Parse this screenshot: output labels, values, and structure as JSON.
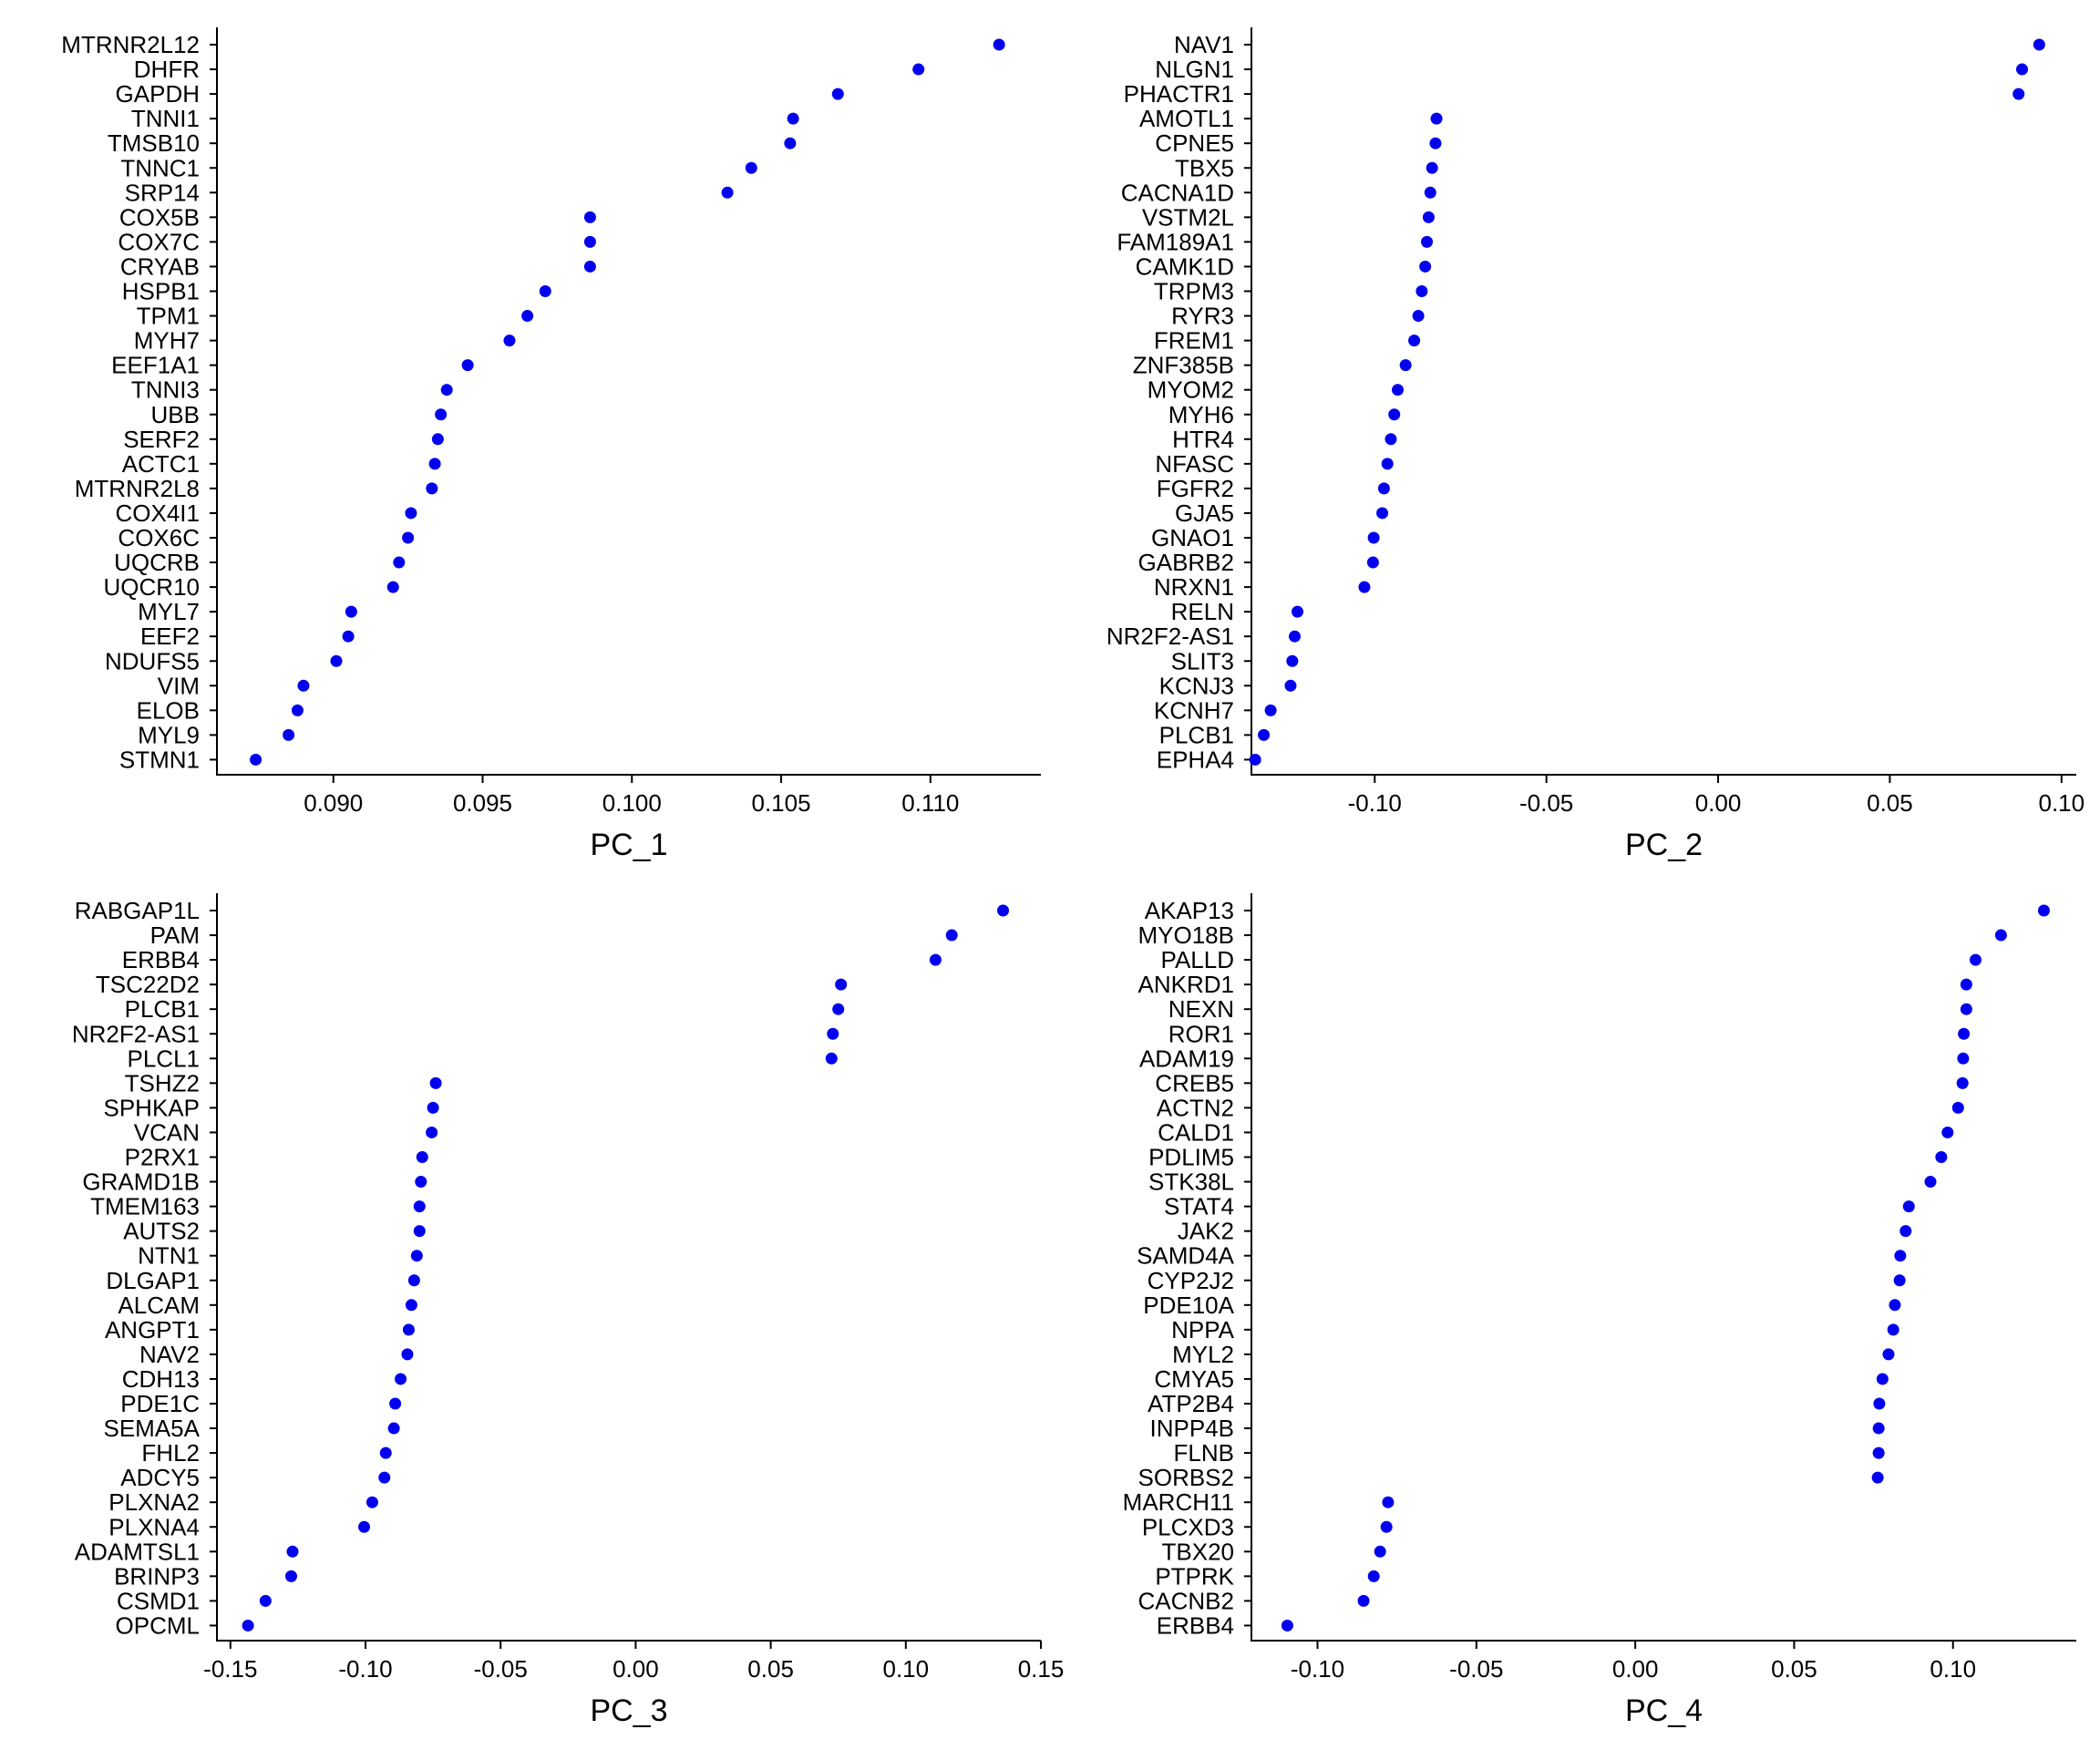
{
  "colors": {
    "point": "#0000ee",
    "axis": "#000000",
    "background": "#ffffff"
  },
  "chart_data": [
    {
      "type": "scatter",
      "xlabel": "PC_1",
      "xlim": [
        0.0861,
        0.1137
      ],
      "xticks": [
        0.09,
        0.095,
        0.1,
        0.105,
        0.11
      ],
      "xtick_labels": [
        "0.090",
        "0.095",
        "0.100",
        "0.105",
        "0.110"
      ],
      "genes": [
        "MTRNR2L12",
        "DHFR",
        "GAPDH",
        "TNNI1",
        "TMSB10",
        "TNNC1",
        "SRP14",
        "COX5B",
        "COX7C",
        "CRYAB",
        "HSPB1",
        "TPM1",
        "MYH7",
        "EEF1A1",
        "TNNI3",
        "UBB",
        "SERF2",
        "ACTC1",
        "MTRNR2L8",
        "COX4I1",
        "COX6C",
        "UQCRB",
        "UQCR10",
        "MYL7",
        "EEF2",
        "NDUFS5",
        "VIM",
        "ELOB",
        "MYL9",
        "STMN1"
      ],
      "values": [
        0.1123,
        0.1096,
        0.1069,
        0.1054,
        0.1053,
        0.104,
        0.1032,
        0.0986,
        0.0986,
        0.0986,
        0.0971,
        0.0965,
        0.0959,
        0.0945,
        0.0938,
        0.0936,
        0.0935,
        0.0934,
        0.0933,
        0.0926,
        0.0925,
        0.0922,
        0.092,
        0.0906,
        0.0905,
        0.0901,
        0.089,
        0.0888,
        0.0885,
        0.0874
      ]
    },
    {
      "type": "scatter",
      "xlabel": "PC_2",
      "xlim": [
        -0.1359,
        0.1043
      ],
      "xticks": [
        -0.1,
        -0.05,
        0.0,
        0.05,
        0.1
      ],
      "xtick_labels": [
        "-0.10",
        "-0.05",
        "0.00",
        "0.05",
        "0.10"
      ],
      "genes": [
        "NAV1",
        "NLGN1",
        "PHACTR1",
        "AMOTL1",
        "CPNE5",
        "TBX5",
        "CACNA1D",
        "VSTM2L",
        "FAM189A1",
        "CAMK1D",
        "TRPM3",
        "RYR3",
        "FREM1",
        "ZNF385B",
        "MYOM2",
        "MYH6",
        "HTR4",
        "NFASC",
        "FGFR2",
        "GJA5",
        "GNAO1",
        "GABRB2",
        "NRXN1",
        "RELN",
        "NR2F2-AS1",
        "SLIT3",
        "KCNJ3",
        "KCNH7",
        "PLCB1",
        "EPHA4"
      ],
      "values": [
        0.0935,
        0.0885,
        0.0875,
        -0.082,
        -0.0823,
        -0.0833,
        -0.0838,
        -0.0843,
        -0.0848,
        -0.0853,
        -0.0863,
        -0.0873,
        -0.0885,
        -0.091,
        -0.0933,
        -0.0943,
        -0.0953,
        -0.0963,
        -0.0973,
        -0.0978,
        -0.1003,
        -0.1005,
        -0.103,
        -0.1225,
        -0.1233,
        -0.124,
        -0.1245,
        -0.1303,
        -0.1323,
        -0.1348
      ]
    },
    {
      "type": "scatter",
      "xlabel": "PC_3",
      "xlim": [
        -0.155,
        0.15
      ],
      "xticks": [
        -0.15,
        -0.1,
        -0.05,
        0.0,
        0.05,
        0.1,
        0.15
      ],
      "xtick_labels": [
        "-0.15",
        "-0.10",
        "-0.05",
        "0.00",
        "0.05",
        "0.10",
        "0.15"
      ],
      "genes": [
        "RABGAP1L",
        "PAM",
        "ERBB4",
        "TSC22D2",
        "PLCB1",
        "NR2F2-AS1",
        "PLCL1",
        "TSHZ2",
        "SPHKAP",
        "VCAN",
        "P2RX1",
        "GRAMD1B",
        "TMEM163",
        "AUTS2",
        "NTN1",
        "DLGAP1",
        "ALCAM",
        "ANGPT1",
        "NAV2",
        "CDH13",
        "PDE1C",
        "SEMA5A",
        "FHL2",
        "ADCY5",
        "PLXNA2",
        "PLXNA4",
        "ADAMTSL1",
        "BRINP3",
        "CSMD1",
        "OPCML"
      ],
      "values": [
        0.136,
        0.117,
        0.111,
        0.076,
        0.075,
        0.073,
        0.0725,
        -0.074,
        -0.075,
        -0.0755,
        -0.079,
        -0.0795,
        -0.08,
        -0.08,
        -0.081,
        -0.082,
        -0.083,
        -0.084,
        -0.0845,
        -0.087,
        -0.089,
        -0.0895,
        -0.0925,
        -0.093,
        -0.0975,
        -0.1005,
        -0.127,
        -0.1275,
        -0.137,
        -0.1435
      ]
    },
    {
      "type": "scatter",
      "xlabel": "PC_4",
      "xlim": [
        -0.1208,
        0.1388
      ],
      "xticks": [
        -0.1,
        -0.05,
        0.0,
        0.05,
        0.1
      ],
      "xtick_labels": [
        "-0.10",
        "-0.05",
        "0.00",
        "0.05",
        "0.10"
      ],
      "genes": [
        "AKAP13",
        "MYO18B",
        "PALLD",
        "ANKRD1",
        "NEXN",
        "ROR1",
        "ADAM19",
        "CREB5",
        "ACTN2",
        "CALD1",
        "PDLIM5",
        "STK38L",
        "STAT4",
        "JAK2",
        "SAMD4A",
        "CYP2J2",
        "PDE10A",
        "NPPA",
        "MYL2",
        "CMYA5",
        "ATP2B4",
        "INPP4B",
        "FLNB",
        "SORBS2",
        "MARCH11",
        "PLCXD3",
        "TBX20",
        "PTPRK",
        "CACNB2",
        "ERBB4"
      ],
      "values": [
        0.1286,
        0.1151,
        0.1071,
        0.1042,
        0.1042,
        0.1034,
        0.1032,
        0.103,
        0.1016,
        0.0983,
        0.0963,
        0.0929,
        0.0861,
        0.0851,
        0.0834,
        0.0832,
        0.0817,
        0.0812,
        0.0797,
        0.0778,
        0.0768,
        0.0766,
        0.0766,
        0.0763,
        -0.0778,
        -0.0783,
        -0.0803,
        -0.0823,
        -0.0855,
        -0.1095
      ]
    }
  ]
}
